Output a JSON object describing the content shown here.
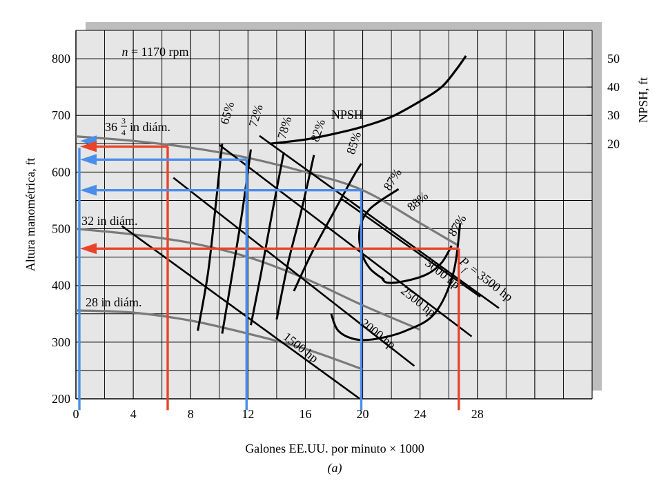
{
  "chart_data": {
    "type": "line",
    "title": "",
    "speed_label": "n = 1170 rpm",
    "xlabel": "Galones EE.UU. por minuto × 1000",
    "ylabel": "Altura manométrica, ft",
    "y2label": "NPSH, ft",
    "caption": "(a)",
    "xlim": [
      0,
      36
    ],
    "ylim": [
      200,
      850
    ],
    "x_ticks": [
      0,
      4,
      8,
      12,
      16,
      20,
      24,
      28
    ],
    "y_ticks": [
      200,
      300,
      400,
      500,
      600,
      700,
      800
    ],
    "y2_ticks": [
      {
        "value": 50,
        "at": 800
      },
      {
        "value": 40,
        "at": 750
      },
      {
        "value": 30,
        "at": 700
      },
      {
        "value": 20,
        "at": 650
      }
    ],
    "grid": true,
    "diameter_curves": [
      {
        "name": "36 3/4 in diám.",
        "label_whole": "36",
        "label_num": "3",
        "label_den": "4",
        "label_rest": " in diám.",
        "x": [
          0,
          4,
          8,
          12,
          16,
          20,
          24,
          26.7
        ],
        "y": [
          663,
          655,
          643,
          625,
          600,
          568,
          510,
          470
        ]
      },
      {
        "name": "32 in diám.",
        "label": "32 in diám.",
        "x": [
          0,
          4,
          8,
          12,
          16,
          20,
          24
        ],
        "y": [
          500,
          490,
          475,
          450,
          412,
          365,
          322
        ]
      },
      {
        "name": "28 in diám.",
        "label": "28 in diám.",
        "x": [
          0,
          4,
          8,
          12,
          16,
          20
        ],
        "y": [
          356,
          352,
          338,
          315,
          288,
          252
        ]
      }
    ],
    "npsh_curve": {
      "name": "NPSH",
      "x": [
        13.5,
        16,
        18,
        20,
        22,
        24,
        25.5,
        26.5,
        27.2
      ],
      "y": [
        20,
        21.5,
        23.5,
        26,
        29.5,
        35,
        40,
        46,
        51
      ]
    },
    "efficiency_curves": [
      {
        "label": "65%",
        "x": [
          8.5,
          9.2,
          9.7,
          10.2
        ],
        "y": [
          320,
          420,
          530,
          650
        ]
      },
      {
        "label": "72%",
        "x": [
          10.2,
          10.9,
          11.6,
          12.2
        ],
        "y": [
          315,
          420,
          530,
          640
        ]
      },
      {
        "label": "78%",
        "x": [
          12.2,
          12.9,
          13.7,
          14.5
        ],
        "y": [
          330,
          420,
          530,
          635
        ]
      },
      {
        "label": "82%",
        "x": [
          14.0,
          14.8,
          15.8,
          16.6
        ],
        "y": [
          340,
          440,
          540,
          630
        ]
      },
      {
        "label": "85%",
        "x": [
          15.2,
          16.5,
          18.0,
          19.3,
          19.9
        ],
        "y": [
          390,
          460,
          530,
          590,
          615
        ]
      },
      {
        "label": "87%",
        "x": [
          17.8,
          18.3,
          19.5,
          21.0,
          23.0,
          25.0,
          26.3,
          26.8
        ],
        "y": [
          350,
          320,
          305,
          306,
          320,
          350,
          420,
          510
        ]
      },
      {
        "label": "88%",
        "x": [
          22.5,
          20.5,
          19.8,
          19.9,
          20.5,
          21.5
        ],
        "y": [
          570,
          535,
          500,
          460,
          430,
          410
        ]
      },
      {
        "label": "87%",
        "x": [
          21.3,
          21.7,
          23.0,
          24.5,
          25.5,
          26.2
        ],
        "y": [
          415,
          405,
          408,
          420,
          440,
          470
        ]
      }
    ],
    "power_lines": [
      {
        "label": "1500 hp",
        "x": [
          3.2,
          19.8
        ],
        "y": [
          505,
          200
        ]
      },
      {
        "label": "2000 hp",
        "x": [
          6.8,
          23.6
        ],
        "y": [
          590,
          258
        ]
      },
      {
        "label": "2500 hp",
        "x": [
          10.0,
          27.6
        ],
        "y": [
          648,
          310
        ]
      },
      {
        "label": "3000 hp",
        "x": [
          12.8,
          29.5
        ],
        "y": [
          664,
          360
        ]
      },
      {
        "label": "Pf = 3500 hp",
        "label_main": "P",
        "label_sub": "f",
        "label_rest": " = 3500 hp",
        "x": [
          18.5,
          28.2
        ],
        "y": [
          553,
          380
        ]
      }
    ],
    "operating_points": [
      {
        "color": "#e8442a",
        "x": 6.4,
        "y": 645
      },
      {
        "color": "#e8442a",
        "x": 26.7,
        "y": 465
      },
      {
        "color": "#4a8eea",
        "x": 11.9,
        "y": 622
      },
      {
        "color": "#4a8eea",
        "x": 19.9,
        "y": 568
      }
    ],
    "axis_arrows": [
      {
        "color": "#4a8eea",
        "y": 655
      },
      {
        "color": "#e8442a",
        "y": 645
      },
      {
        "color": "#4a8eea",
        "y": 622
      },
      {
        "color": "#4a8eea",
        "y": 568
      },
      {
        "color": "#e8442a",
        "y": 465
      }
    ],
    "colors": {
      "panel": "#e6e6e6",
      "shadow": "#bdbdbd",
      "diameter": "#7a7a7a",
      "lines": "#000000",
      "red": "#e8442a",
      "blue": "#4a8eea"
    }
  }
}
